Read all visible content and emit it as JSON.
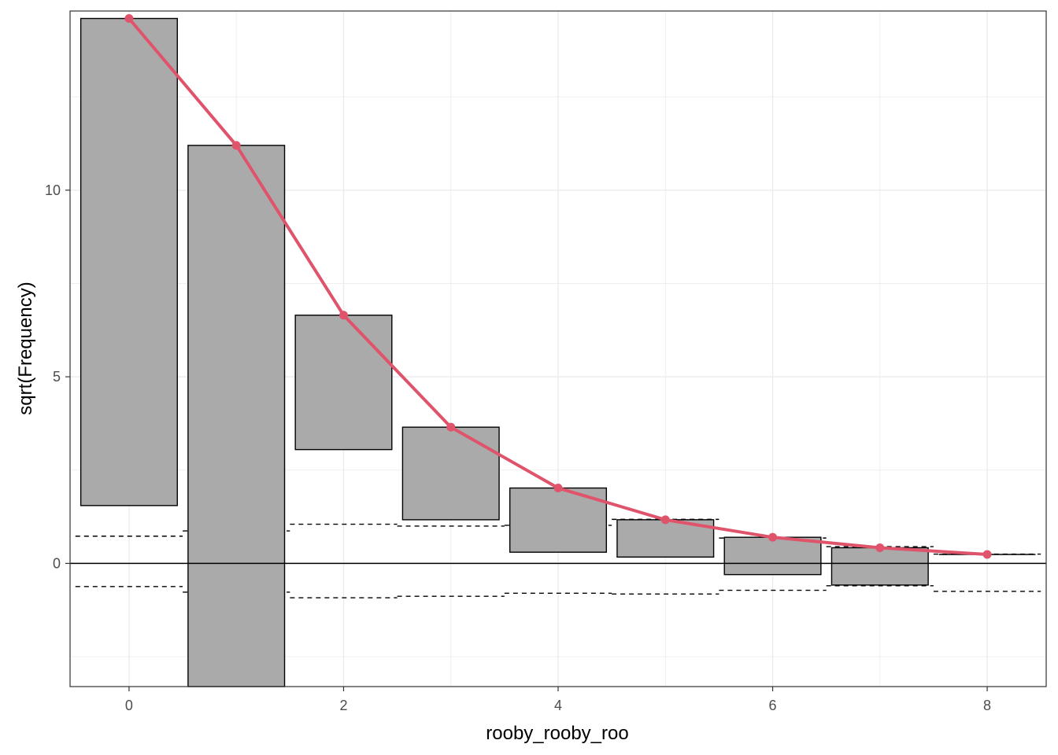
{
  "chart_data": {
    "type": "rootogram",
    "title": "",
    "xlabel": "rooby_rooby_roo",
    "ylabel": "sqrt(Frequency)",
    "xlim": [
      -0.55,
      8.55
    ],
    "ylim": [
      -3.3,
      14.8
    ],
    "x_ticks": [
      0,
      2,
      4,
      6,
      8
    ],
    "y_ticks": [
      0,
      5,
      10
    ],
    "grid": true,
    "legend": "none",
    "bar_width": 0.9,
    "bars": [
      {
        "x": 0,
        "top": 14.6,
        "bottom": 1.55
      },
      {
        "x": 1,
        "top": 11.2,
        "bottom": -3.3
      },
      {
        "x": 2,
        "top": 6.65,
        "bottom": 3.05
      },
      {
        "x": 3,
        "top": 3.65,
        "bottom": 1.17
      },
      {
        "x": 4,
        "top": 2.02,
        "bottom": 0.3
      },
      {
        "x": 5,
        "top": 1.17,
        "bottom": 0.17
      },
      {
        "x": 6,
        "top": 0.7,
        "bottom": -0.3
      },
      {
        "x": 7,
        "top": 0.42,
        "bottom": -0.58
      },
      {
        "x": 8,
        "top": 0.24,
        "bottom": 0.24
      }
    ],
    "expected": {
      "x": [
        0,
        1,
        2,
        3,
        4,
        5,
        6,
        7,
        8
      ],
      "y": [
        14.6,
        11.2,
        6.65,
        3.65,
        2.02,
        1.17,
        0.7,
        0.42,
        0.24
      ]
    },
    "reference_bands": {
      "upper": [
        0.73,
        0.87,
        1.05,
        1.0,
        1.02,
        1.18,
        0.68,
        0.45,
        0.25
      ],
      "lower": [
        -0.62,
        -0.77,
        -0.92,
        -0.88,
        -0.8,
        -0.82,
        -0.72,
        -0.6,
        -0.75
      ]
    },
    "colors": {
      "bar_fill": "#aaaaaa",
      "bar_stroke": "#000000",
      "line": "#df536b",
      "grid": "#ebebeb",
      "panel_border": "#333333"
    }
  }
}
